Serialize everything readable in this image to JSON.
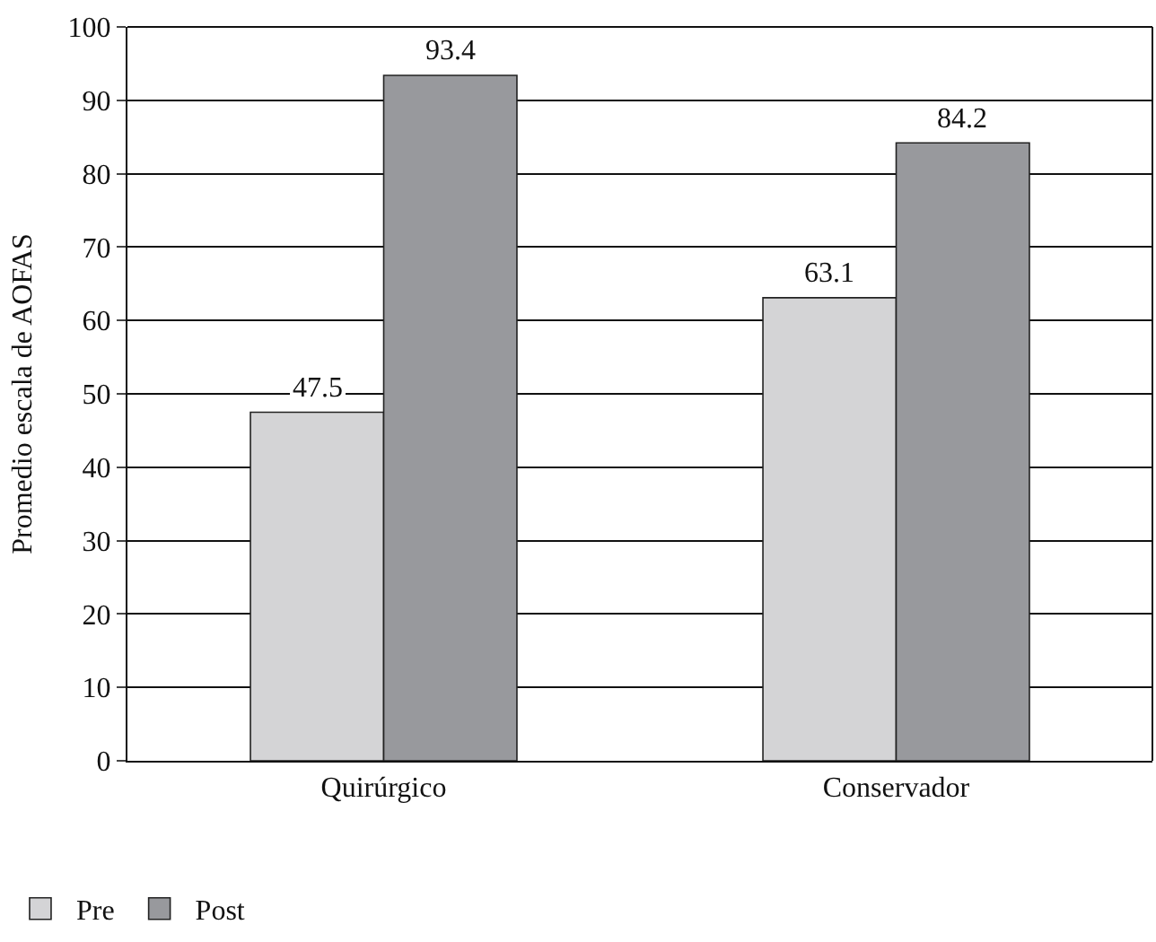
{
  "chart_data": {
    "type": "bar",
    "ylabel": "Promedio escala de AOFAS",
    "categories": [
      "Quirúrgico",
      "Conservador"
    ],
    "series": [
      {
        "name": "Pre",
        "color": "#d4d4d6",
        "values": [
          47.5,
          63.1
        ]
      },
      {
        "name": "Post",
        "color": "#98999d",
        "values": [
          93.4,
          84.2
        ]
      }
    ],
    "ylim": [
      0,
      100
    ],
    "yticks": [
      0,
      10,
      20,
      30,
      40,
      50,
      60,
      70,
      80,
      90,
      100
    ],
    "grid": "y",
    "legend": "bottom left",
    "data_labels": true
  }
}
